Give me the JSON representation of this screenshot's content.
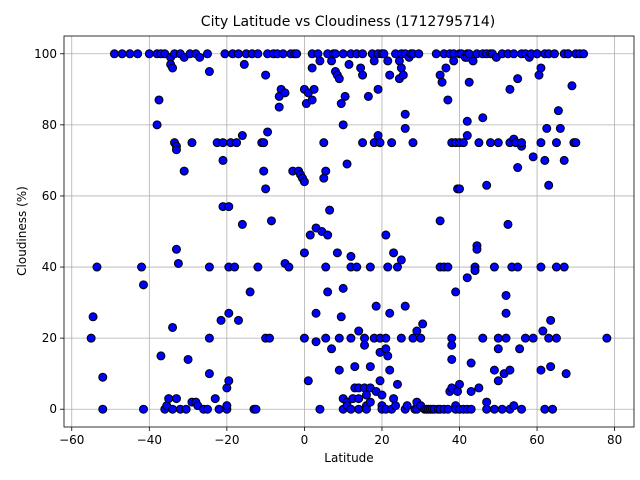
{
  "chart_data": {
    "type": "scatter",
    "title": "City Latitude vs Cloudiness (1712795714)",
    "xlabel": "Latitude",
    "ylabel": "Cloudiness (%)",
    "xlim": [
      -62,
      85
    ],
    "ylim": [
      -5,
      105
    ],
    "xticks": [
      -60,
      -40,
      -20,
      0,
      20,
      40,
      60,
      80
    ],
    "yticks": [
      0,
      20,
      40,
      60,
      80,
      100
    ],
    "grid": true,
    "colors": {
      "marker_fill": "#0000ff",
      "marker_edge": "#000000",
      "grid": "#b0b0b0"
    },
    "points": [
      [
        -55,
        20
      ],
      [
        -54.5,
        26
      ],
      [
        -53.5,
        40
      ],
      [
        -52,
        9
      ],
      [
        -52,
        0
      ],
      [
        -49,
        100
      ],
      [
        -47,
        100
      ],
      [
        -45,
        100
      ],
      [
        -43,
        100
      ],
      [
        -42,
        40
      ],
      [
        -41.5,
        35
      ],
      [
        -41.5,
        0
      ],
      [
        -40,
        100
      ],
      [
        -38,
        100
      ],
      [
        -38,
        80
      ],
      [
        -37.5,
        87
      ],
      [
        -37,
        100
      ],
      [
        -37,
        15
      ],
      [
        -36,
        100
      ],
      [
        -36,
        0
      ],
      [
        -35.5,
        1
      ],
      [
        -35,
        3
      ],
      [
        -34.5,
        99
      ],
      [
        -34.5,
        97
      ],
      [
        -34,
        96
      ],
      [
        -34,
        23
      ],
      [
        -34,
        0
      ],
      [
        -33.5,
        100
      ],
      [
        -33.5,
        75
      ],
      [
        -33,
        74
      ],
      [
        -33,
        73
      ],
      [
        -33,
        45
      ],
      [
        -33,
        3
      ],
      [
        -32.5,
        41
      ],
      [
        -32,
        100
      ],
      [
        -32,
        0
      ],
      [
        -31,
        99
      ],
      [
        -31,
        67
      ],
      [
        -30.5,
        0
      ],
      [
        -30,
        14
      ],
      [
        -29.5,
        100
      ],
      [
        -29,
        75
      ],
      [
        -29,
        2
      ],
      [
        -28,
        100
      ],
      [
        -28,
        2
      ],
      [
        -27.5,
        1
      ],
      [
        -27,
        99
      ],
      [
        -26,
        0
      ],
      [
        -25,
        100
      ],
      [
        -25,
        0
      ],
      [
        -24.5,
        95
      ],
      [
        -24.5,
        40
      ],
      [
        -24.5,
        20
      ],
      [
        -24.5,
        10
      ],
      [
        -23,
        3
      ],
      [
        -22.5,
        75
      ],
      [
        -22,
        0
      ],
      [
        -21.5,
        25
      ],
      [
        -21,
        75
      ],
      [
        -21,
        70
      ],
      [
        -21,
        57
      ],
      [
        -20.5,
        100
      ],
      [
        -20,
        0
      ],
      [
        -20,
        1
      ],
      [
        -20,
        6
      ],
      [
        -19.5,
        8
      ],
      [
        -19.5,
        40
      ],
      [
        -19.5,
        57
      ],
      [
        -19.5,
        27
      ],
      [
        -19,
        75
      ],
      [
        -18.5,
        100
      ],
      [
        -18,
        40
      ],
      [
        -17.5,
        75
      ],
      [
        -17,
        100
      ],
      [
        -17,
        25
      ],
      [
        -16,
        52
      ],
      [
        -16,
        77
      ],
      [
        -15.5,
        97
      ],
      [
        -15,
        100
      ],
      [
        -14,
        33
      ],
      [
        -13.5,
        100
      ],
      [
        -13,
        0
      ],
      [
        -12.5,
        0
      ],
      [
        -12,
        100
      ],
      [
        -12,
        40
      ],
      [
        -11,
        75
      ],
      [
        -10.5,
        67
      ],
      [
        -10.5,
        75
      ],
      [
        -10,
        62
      ],
      [
        -10,
        94
      ],
      [
        -10,
        20
      ],
      [
        -9.5,
        100
      ],
      [
        -9.5,
        78
      ],
      [
        -9,
        20
      ],
      [
        -8.5,
        53
      ],
      [
        -8,
        100
      ],
      [
        -7,
        100
      ],
      [
        -6.5,
        88
      ],
      [
        -6.5,
        85
      ],
      [
        -6,
        90
      ],
      [
        -5.5,
        100
      ],
      [
        -5,
        89
      ],
      [
        -5,
        41
      ],
      [
        -4,
        40
      ],
      [
        -3.5,
        100
      ],
      [
        -3,
        67
      ],
      [
        -2.5,
        100
      ],
      [
        -2,
        100
      ],
      [
        -1.5,
        67
      ],
      [
        -1,
        66
      ],
      [
        -0.5,
        65
      ],
      [
        0,
        64
      ],
      [
        0,
        44
      ],
      [
        0,
        20
      ],
      [
        0,
        90
      ],
      [
        0.5,
        86
      ],
      [
        1,
        89
      ],
      [
        1,
        8
      ],
      [
        1.5,
        49
      ],
      [
        2,
        100
      ],
      [
        2,
        96
      ],
      [
        2,
        87
      ],
      [
        2.5,
        90
      ],
      [
        3,
        51
      ],
      [
        3,
        27
      ],
      [
        3,
        19
      ],
      [
        3.5,
        100
      ],
      [
        4,
        0
      ],
      [
        4,
        98
      ],
      [
        4.5,
        50
      ],
      [
        5,
        75
      ],
      [
        5,
        65
      ],
      [
        5.5,
        67
      ],
      [
        5.5,
        40
      ],
      [
        5.5,
        20
      ],
      [
        6,
        100
      ],
      [
        6,
        33
      ],
      [
        6,
        49
      ],
      [
        6.5,
        56
      ],
      [
        7,
        98
      ],
      [
        7,
        17
      ],
      [
        7.5,
        100
      ],
      [
        8,
        95
      ],
      [
        8,
        100
      ],
      [
        8.5,
        94
      ],
      [
        8.5,
        44
      ],
      [
        9,
        93
      ],
      [
        9,
        20
      ],
      [
        9,
        11
      ],
      [
        9.5,
        86
      ],
      [
        9.5,
        26
      ],
      [
        10,
        80
      ],
      [
        10,
        100
      ],
      [
        10,
        34
      ],
      [
        10,
        3
      ],
      [
        10,
        0
      ],
      [
        10.5,
        88
      ],
      [
        11,
        69
      ],
      [
        11,
        2
      ],
      [
        11,
        1
      ],
      [
        11.5,
        97
      ],
      [
        12,
        100
      ],
      [
        12,
        40
      ],
      [
        12,
        43
      ],
      [
        12,
        20
      ],
      [
        12,
        0
      ],
      [
        12.5,
        3
      ],
      [
        13,
        6
      ],
      [
        13,
        12
      ],
      [
        13.5,
        100
      ],
      [
        13.5,
        40
      ],
      [
        14,
        22
      ],
      [
        14,
        6
      ],
      [
        14,
        3
      ],
      [
        14,
        0
      ],
      [
        14.5,
        96
      ],
      [
        15,
        94
      ],
      [
        15,
        75
      ],
      [
        15,
        100
      ],
      [
        15.5,
        6
      ],
      [
        15.5,
        20
      ],
      [
        15.5,
        18
      ],
      [
        16,
        4
      ],
      [
        16,
        1
      ],
      [
        16,
        0
      ],
      [
        16.5,
        88
      ],
      [
        17,
        40
      ],
      [
        17,
        12
      ],
      [
        17,
        6
      ],
      [
        17,
        2
      ],
      [
        17.5,
        100
      ],
      [
        18,
        98
      ],
      [
        18,
        75
      ],
      [
        18,
        20
      ],
      [
        18.5,
        29
      ],
      [
        18.5,
        5
      ],
      [
        19,
        77
      ],
      [
        19,
        90
      ],
      [
        19,
        100
      ],
      [
        19.5,
        75
      ],
      [
        19.5,
        20
      ],
      [
        19.5,
        16
      ],
      [
        19.5,
        8
      ],
      [
        20,
        100
      ],
      [
        20,
        4
      ],
      [
        20,
        1
      ],
      [
        20,
        0
      ],
      [
        20.5,
        100
      ],
      [
        21,
        49
      ],
      [
        21,
        20
      ],
      [
        21,
        17
      ],
      [
        21,
        0
      ],
      [
        21.5,
        98
      ],
      [
        21.5,
        40
      ],
      [
        21.5,
        15
      ],
      [
        22,
        94
      ],
      [
        22,
        27
      ],
      [
        22,
        11
      ],
      [
        22.5,
        0
      ],
      [
        22.5,
        75
      ],
      [
        23,
        44
      ],
      [
        23,
        3
      ],
      [
        23.5,
        100
      ],
      [
        23.5,
        1
      ],
      [
        24,
        7
      ],
      [
        24,
        40
      ],
      [
        24.5,
        98
      ],
      [
        24.5,
        93
      ],
      [
        25,
        100
      ],
      [
        25,
        96
      ],
      [
        25,
        42
      ],
      [
        25,
        20
      ],
      [
        25.5,
        94
      ],
      [
        26,
        100
      ],
      [
        26,
        79
      ],
      [
        26,
        83
      ],
      [
        26,
        29
      ],
      [
        26,
        0
      ],
      [
        26.5,
        1
      ],
      [
        27,
        99
      ],
      [
        27.5,
        100
      ],
      [
        28,
        100
      ],
      [
        28,
        75
      ],
      [
        28,
        20
      ],
      [
        28.5,
        0
      ],
      [
        29,
        2
      ],
      [
        29,
        0
      ],
      [
        29,
        22
      ],
      [
        29.5,
        100
      ],
      [
        30,
        20
      ],
      [
        30,
        1
      ],
      [
        30.5,
        24
      ],
      [
        31,
        0
      ],
      [
        31.5,
        0
      ],
      [
        32,
        0
      ],
      [
        32.5,
        0
      ],
      [
        33,
        0
      ],
      [
        33.5,
        0
      ],
      [
        34,
        100
      ],
      [
        34.5,
        0
      ],
      [
        35,
        53
      ],
      [
        35,
        94
      ],
      [
        35,
        40
      ],
      [
        35,
        0
      ],
      [
        35.5,
        92
      ],
      [
        36,
        100
      ],
      [
        36,
        40
      ],
      [
        36,
        0
      ],
      [
        36.5,
        96
      ],
      [
        37,
        0
      ],
      [
        37,
        40
      ],
      [
        37,
        87
      ],
      [
        37.5,
        5
      ],
      [
        37.5,
        100
      ],
      [
        38,
        75
      ],
      [
        38,
        20
      ],
      [
        38,
        14
      ],
      [
        38,
        6
      ],
      [
        38,
        18
      ],
      [
        38.5,
        100
      ],
      [
        38.5,
        98
      ],
      [
        39,
        75
      ],
      [
        39,
        33
      ],
      [
        39,
        1
      ],
      [
        39,
        0
      ],
      [
        39.5,
        62
      ],
      [
        39.5,
        5
      ],
      [
        40,
        100
      ],
      [
        40,
        75
      ],
      [
        40,
        62
      ],
      [
        40,
        7
      ],
      [
        40,
        0
      ],
      [
        40.5,
        100
      ],
      [
        41,
        75
      ],
      [
        41,
        0
      ],
      [
        41.5,
        99
      ],
      [
        42,
        100
      ],
      [
        42,
        99
      ],
      [
        42,
        81
      ],
      [
        42,
        77
      ],
      [
        42,
        37
      ],
      [
        42,
        0
      ],
      [
        42.5,
        100
      ],
      [
        42.5,
        92
      ],
      [
        43,
        13
      ],
      [
        43,
        5
      ],
      [
        43,
        0
      ],
      [
        43.5,
        98
      ],
      [
        44,
        40
      ],
      [
        44,
        39
      ],
      [
        44.5,
        100
      ],
      [
        44.5,
        46
      ],
      [
        44.5,
        45
      ],
      [
        45,
        6
      ],
      [
        45,
        75
      ],
      [
        46,
        100
      ],
      [
        46,
        82
      ],
      [
        46,
        20
      ],
      [
        47,
        100
      ],
      [
        47,
        63
      ],
      [
        47,
        2
      ],
      [
        47,
        0
      ],
      [
        48,
        75
      ],
      [
        48,
        100
      ],
      [
        48.5,
        100
      ],
      [
        49,
        11
      ],
      [
        49,
        40
      ],
      [
        49,
        0
      ],
      [
        49.5,
        99
      ],
      [
        50,
        8
      ],
      [
        50,
        17
      ],
      [
        50,
        20
      ],
      [
        50,
        75
      ],
      [
        51,
        100
      ],
      [
        51,
        0
      ],
      [
        51.5,
        10
      ],
      [
        52,
        32
      ],
      [
        52,
        27
      ],
      [
        52,
        20
      ],
      [
        52.5,
        100
      ],
      [
        52.5,
        52
      ],
      [
        53,
        90
      ],
      [
        53,
        75
      ],
      [
        53,
        11
      ],
      [
        53,
        0
      ],
      [
        53.5,
        40
      ],
      [
        54,
        76
      ],
      [
        54,
        100
      ],
      [
        54,
        1
      ],
      [
        54.5,
        75
      ],
      [
        55,
        40
      ],
      [
        55,
        68
      ],
      [
        55,
        93
      ],
      [
        55.5,
        17
      ],
      [
        56,
        100
      ],
      [
        56,
        74
      ],
      [
        56,
        75
      ],
      [
        56,
        0
      ],
      [
        57,
        100
      ],
      [
        57,
        20
      ],
      [
        58,
        99
      ],
      [
        58.5,
        100
      ],
      [
        59,
        71
      ],
      [
        59,
        20
      ],
      [
        60,
        100
      ],
      [
        60,
        100
      ],
      [
        60.5,
        94
      ],
      [
        61,
        96
      ],
      [
        61,
        40
      ],
      [
        61,
        75
      ],
      [
        61,
        11
      ],
      [
        61.5,
        22
      ],
      [
        62,
        100
      ],
      [
        62,
        70
      ],
      [
        62,
        0
      ],
      [
        62.5,
        79
      ],
      [
        63,
        63
      ],
      [
        63,
        20
      ],
      [
        63,
        100
      ],
      [
        63.5,
        25
      ],
      [
        63.5,
        12
      ],
      [
        64,
        0
      ],
      [
        64.5,
        100
      ],
      [
        65,
        75
      ],
      [
        65,
        40
      ],
      [
        65,
        20
      ],
      [
        65.5,
        84
      ],
      [
        66,
        79
      ],
      [
        67,
        100
      ],
      [
        67,
        70
      ],
      [
        67,
        40
      ],
      [
        67.5,
        10
      ],
      [
        68,
        100
      ],
      [
        68,
        100
      ],
      [
        69,
        91
      ],
      [
        69.5,
        75
      ],
      [
        70,
        100
      ],
      [
        70,
        75
      ],
      [
        71,
        100
      ],
      [
        72,
        100
      ],
      [
        78,
        20
      ]
    ]
  }
}
